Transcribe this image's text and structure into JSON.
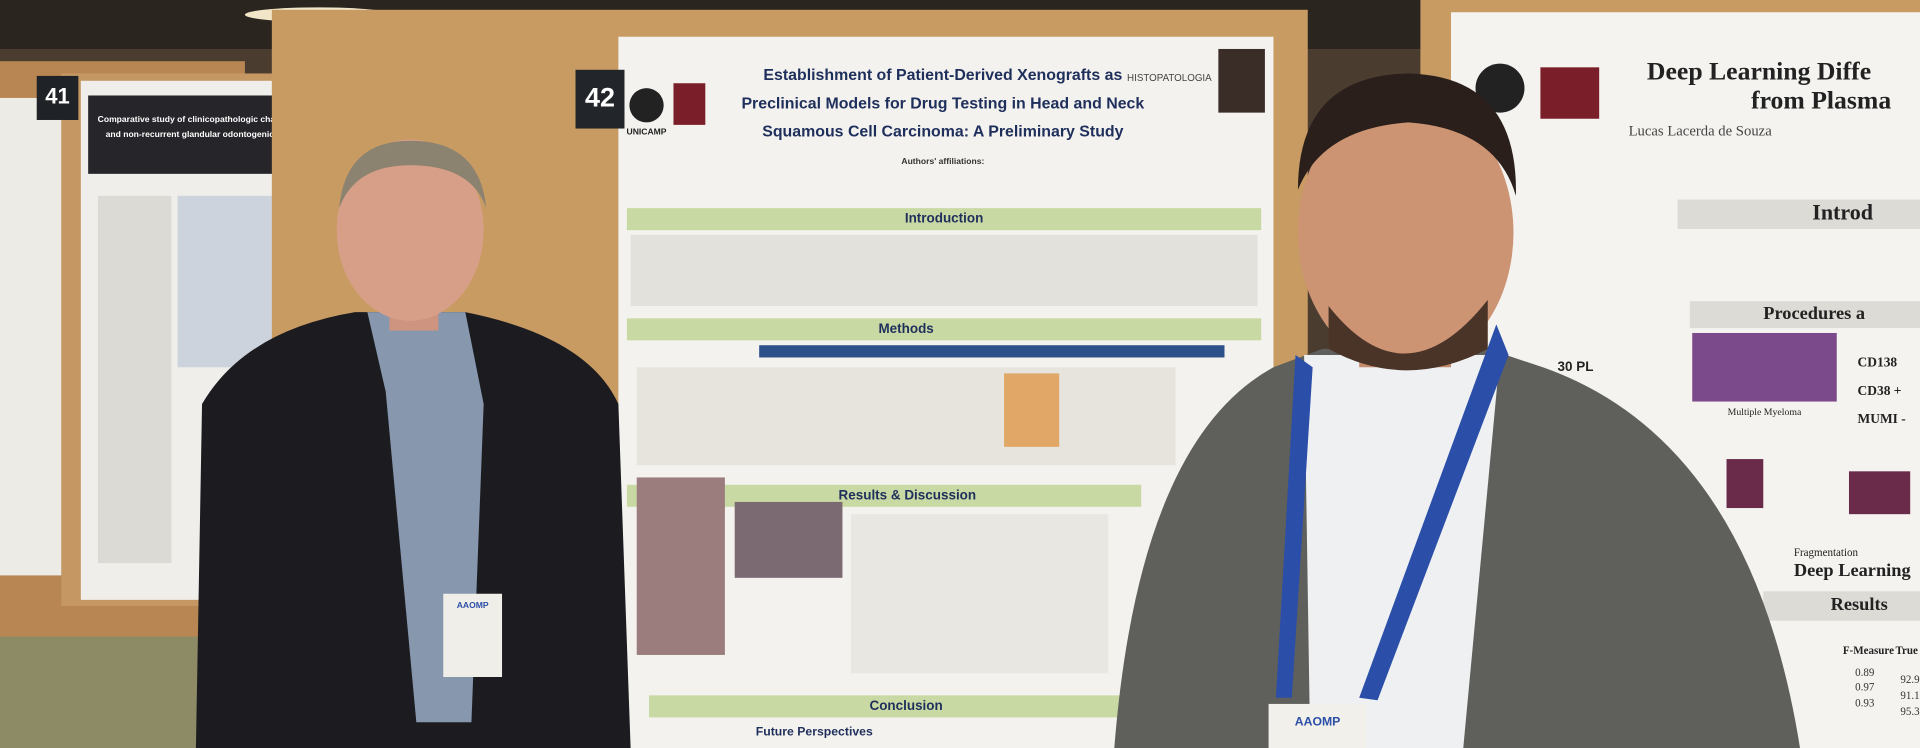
{
  "posters": {
    "left": {
      "number": "41",
      "title": [
        "Comparative study of clinicopathologic characteristics and immunohistochemical expression of recurrent",
        "and non-recurrent glandular odontogenic cysts - A retrospective longitudinal cohort multicenter study"
      ]
    },
    "center": {
      "number": "42",
      "title": [
        "Establishment of Patient-Derived Xenografts as",
        "Preclinical Models for Drug Testing in Head and Neck",
        "Squamous Cell Carcinoma: A Preliminary Study"
      ],
      "institution": "UNICAMP",
      "logo": "HISTOPATOLOGIA",
      "affiliations": "Authors' affiliations:",
      "sections": [
        "Introduction",
        "Methods",
        "Results & Discussion",
        "Conclusion",
        "Future Perspectives"
      ]
    },
    "right": {
      "title": [
        "Deep Learning Diffe",
        "from Plasma"
      ],
      "author": "Lucas Lacerda de Souza",
      "sections": [
        "Introd",
        "Procedures a",
        "Deep Learning",
        "Results"
      ],
      "markers": [
        "CD138",
        "CD38 +",
        "MUMI -"
      ],
      "count": "30 PL",
      "image_label": "Multiple Myeloma",
      "step": "Fragmentation",
      "table": {
        "header": [
          "F-Measure",
          "True Positi"
        ],
        "rows": [
          [
            "0.89",
            "92.9"
          ],
          [
            "0.97",
            "91.1"
          ],
          [
            "0.93",
            "95.3"
          ]
        ]
      }
    }
  },
  "badges": [
    "AAOMP",
    "AAOMP"
  ]
}
